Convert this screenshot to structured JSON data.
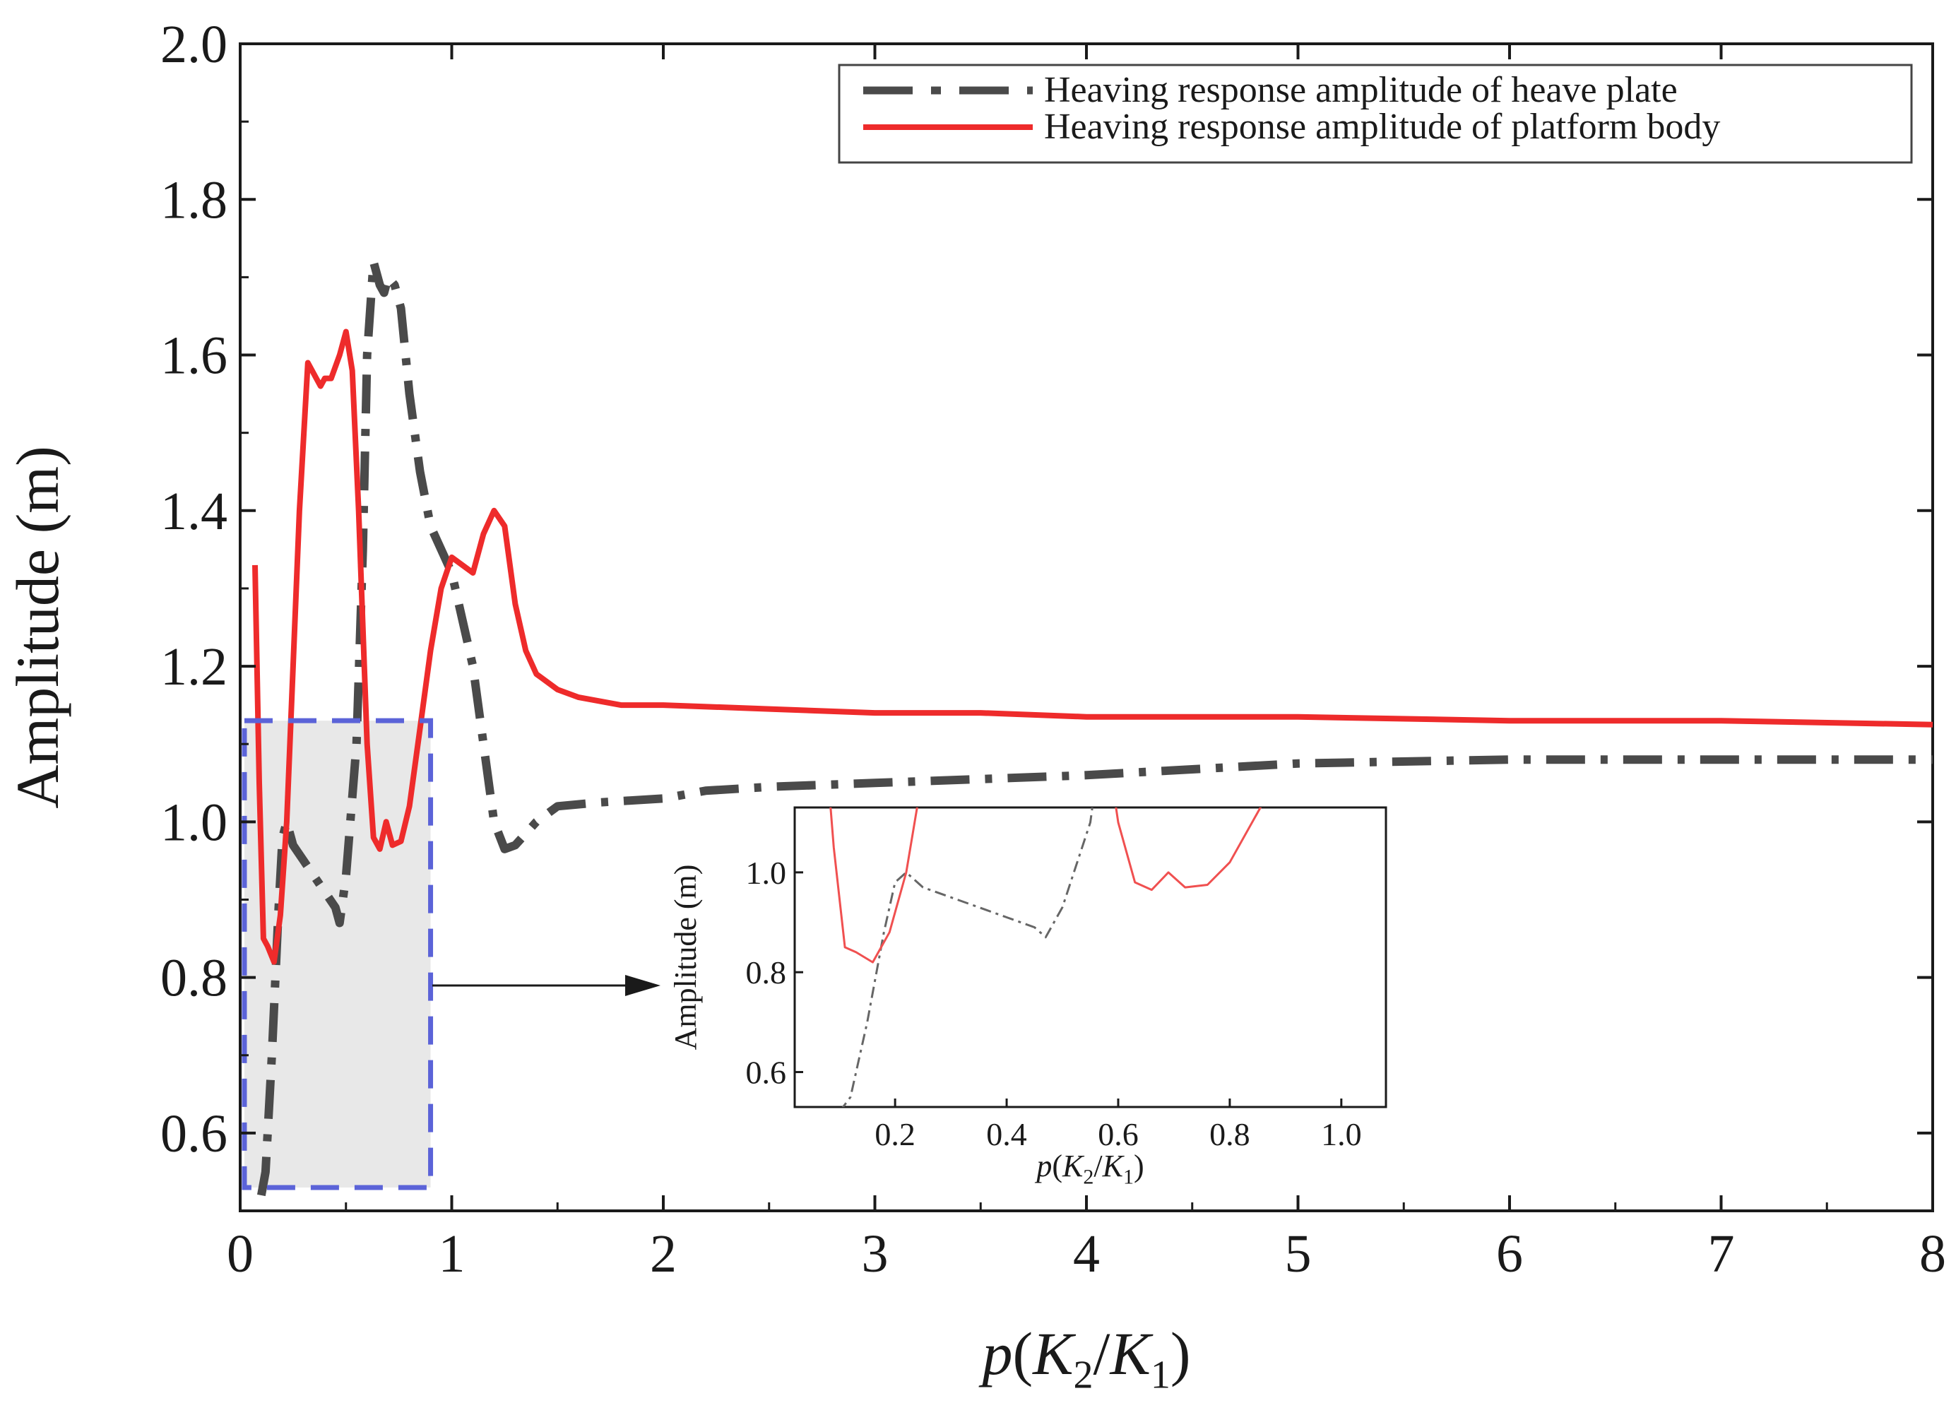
{
  "chart_data": {
    "type": "line",
    "xlabel": "p(K2/K1)",
    "ylabel": "Amplitude (m)",
    "xlim": [
      0,
      8
    ],
    "ylim": [
      0.5,
      2.0
    ],
    "xticks": [
      "0",
      "1",
      "2",
      "3",
      "4",
      "5",
      "6",
      "7",
      "8"
    ],
    "yticks": [
      "0.6",
      "0.8",
      "1.0",
      "1.2",
      "1.4",
      "1.6",
      "1.8",
      "2.0"
    ],
    "legend": {
      "position": "top-right"
    },
    "zoom_region": {
      "x": [
        0.02,
        0.9
      ],
      "y": [
        0.53,
        1.13
      ]
    },
    "series": [
      {
        "name": "Heaving response amplitude of  heave plate",
        "style": "dash-dot",
        "color": "#4a4a4a",
        "x": [
          0.1,
          0.12,
          0.15,
          0.18,
          0.2,
          0.22,
          0.25,
          0.3,
          0.35,
          0.4,
          0.45,
          0.47,
          0.5,
          0.55,
          0.58,
          0.6,
          0.63,
          0.66,
          0.68,
          0.7,
          0.73,
          0.76,
          0.8,
          0.85,
          0.9,
          1.0,
          1.1,
          1.2,
          1.25,
          1.3,
          1.4,
          1.5,
          1.7,
          2.0,
          2.2,
          2.5,
          3.0,
          3.5,
          4.0,
          5.0,
          6.0,
          7.0,
          8.0
        ],
        "values": [
          0.52,
          0.55,
          0.7,
          0.88,
          0.98,
          1.0,
          0.97,
          0.95,
          0.93,
          0.91,
          0.89,
          0.87,
          0.93,
          1.1,
          1.35,
          1.6,
          1.72,
          1.69,
          1.68,
          1.7,
          1.69,
          1.66,
          1.55,
          1.45,
          1.38,
          1.32,
          1.2,
          1.0,
          0.965,
          0.97,
          1.0,
          1.02,
          1.025,
          1.03,
          1.04,
          1.045,
          1.05,
          1.055,
          1.06,
          1.075,
          1.08,
          1.08,
          1.08
        ]
      },
      {
        "name": "Heaving response amplitude of platform body",
        "style": "solid",
        "color": "#ee2b2b",
        "x": [
          0.07,
          0.09,
          0.11,
          0.13,
          0.16,
          0.19,
          0.22,
          0.25,
          0.28,
          0.32,
          0.36,
          0.38,
          0.4,
          0.43,
          0.47,
          0.5,
          0.53,
          0.56,
          0.6,
          0.63,
          0.66,
          0.69,
          0.72,
          0.76,
          0.8,
          0.85,
          0.9,
          0.95,
          1.0,
          1.05,
          1.1,
          1.15,
          1.2,
          1.25,
          1.3,
          1.35,
          1.4,
          1.5,
          1.6,
          1.8,
          2.0,
          2.5,
          3.0,
          3.5,
          4.0,
          5.0,
          6.0,
          7.0,
          8.0
        ],
        "values": [
          1.33,
          1.05,
          0.85,
          0.84,
          0.82,
          0.88,
          1.0,
          1.2,
          1.4,
          1.59,
          1.57,
          1.56,
          1.57,
          1.57,
          1.6,
          1.63,
          1.58,
          1.4,
          1.1,
          0.98,
          0.965,
          1.0,
          0.97,
          0.975,
          1.02,
          1.12,
          1.22,
          1.3,
          1.34,
          1.33,
          1.32,
          1.37,
          1.4,
          1.38,
          1.28,
          1.22,
          1.19,
          1.17,
          1.16,
          1.15,
          1.15,
          1.145,
          1.14,
          1.14,
          1.135,
          1.135,
          1.13,
          1.13,
          1.125
        ]
      }
    ],
    "inset": {
      "xlabel": "p(K2/K1)",
      "ylabel": "Amplitude (m)",
      "xlim": [
        0.02,
        1.08
      ],
      "ylim": [
        0.53,
        1.13
      ],
      "xticks": [
        "0.2",
        "0.4",
        "0.6",
        "0.8",
        "1.0"
      ],
      "yticks": [
        "0.6",
        "0.8",
        "1.0"
      ]
    }
  }
}
